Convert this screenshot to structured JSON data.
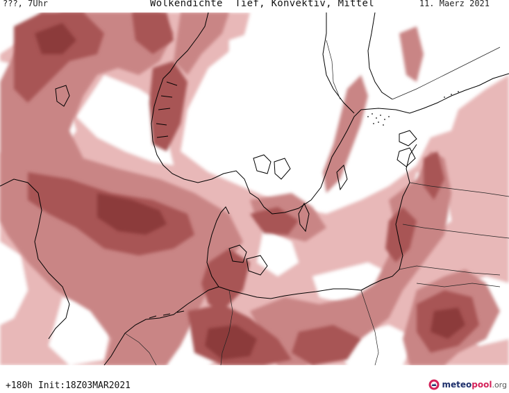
{
  "header": {
    "left_label": "???, 7Uhr",
    "title": "Wolkendichte  Tief, Konvektiv, Mittel",
    "date": "11. Maerz 2021"
  },
  "map": {
    "colors": {
      "land_background": "#ffffff",
      "cloud_light": "#e8b8b8",
      "cloud_medium": "#c98585",
      "cloud_dense": "#a85454",
      "cloud_darkest": "#8c3a3a",
      "coastline": "#000000",
      "border": "#222222"
    }
  },
  "footer": {
    "run_info": "+180h  Init:18Z03MAR2021",
    "logo_text_main": "meteo",
    "logo_text_accent": "pool",
    "logo_text_tld": ".org"
  }
}
